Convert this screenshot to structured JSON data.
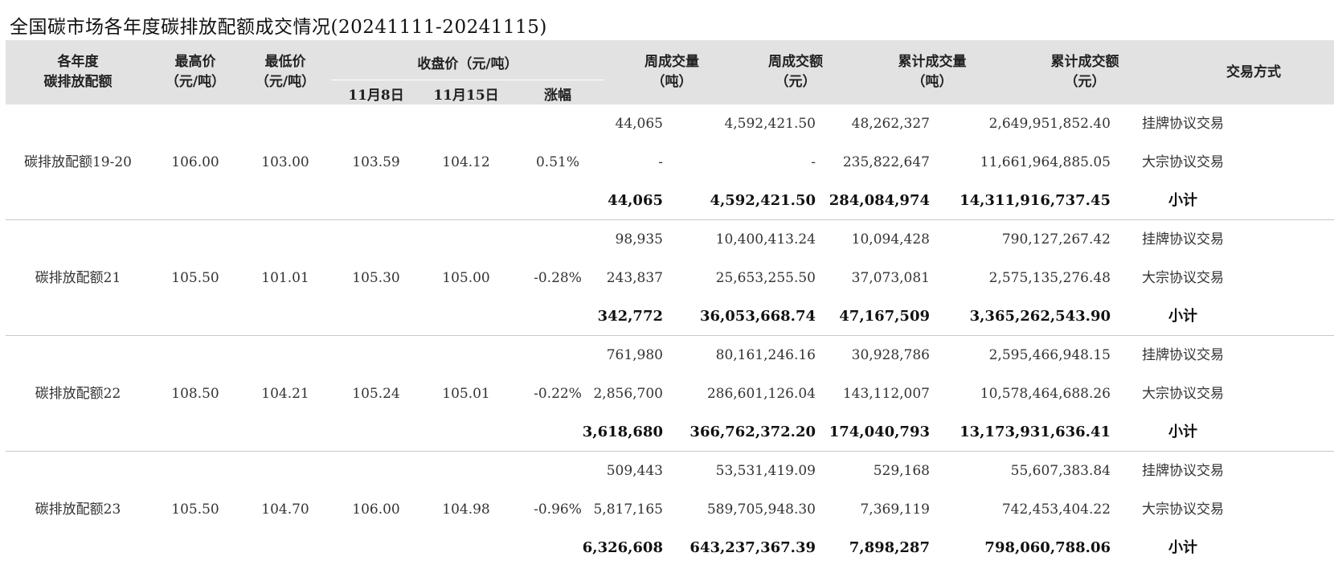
{
  "title": "全国碳市场各年度碳排放配额成交情况(20241111-20241115)",
  "header": {
    "quota_line1": "各年度",
    "quota_line2": "碳排放配额",
    "high_line1": "最高价",
    "high_line2": "（元/吨）",
    "low_line1": "最低价",
    "low_line2": "（元/吨）",
    "close_group": "收盘价（元/吨）",
    "close_d1": "11月8日",
    "close_d2": "11月15日",
    "change": "涨幅",
    "week_vol_line1": "周成交量",
    "week_vol_line2": "（吨）",
    "week_amt_line1": "周成交额",
    "week_amt_line2": "（元）",
    "cum_vol_line1": "累计成交量",
    "cum_vol_line2": "（吨）",
    "cum_amt_line1": "累计成交额",
    "cum_amt_line2": "（元）",
    "method": "交易方式"
  },
  "groups": [
    {
      "name": "碳排放配额19-20",
      "high": "106.00",
      "low": "103.00",
      "close_d1": "103.59",
      "close_d2": "104.12",
      "change": "0.51%",
      "rows": [
        {
          "week_vol": "44,065",
          "week_amt": "4,592,421.50",
          "cum_vol": "48,262,327",
          "cum_amt": "2,649,951,852.40",
          "method": "挂牌协议交易"
        },
        {
          "week_vol": "-",
          "week_amt": "-",
          "cum_vol": "235,822,647",
          "cum_amt": "11,661,964,885.05",
          "method": "大宗协议交易"
        },
        {
          "week_vol": "44,065",
          "week_amt": "4,592,421.50",
          "cum_vol": "284,084,974",
          "cum_amt": "14,311,916,737.45",
          "method": "小计"
        }
      ]
    },
    {
      "name": "碳排放配额21",
      "high": "105.50",
      "low": "101.01",
      "close_d1": "105.30",
      "close_d2": "105.00",
      "change": "-0.28%",
      "rows": [
        {
          "week_vol": "98,935",
          "week_amt": "10,400,413.24",
          "cum_vol": "10,094,428",
          "cum_amt": "790,127,267.42",
          "method": "挂牌协议交易"
        },
        {
          "week_vol": "243,837",
          "week_amt": "25,653,255.50",
          "cum_vol": "37,073,081",
          "cum_amt": "2,575,135,276.48",
          "method": "大宗协议交易"
        },
        {
          "week_vol": "342,772",
          "week_amt": "36,053,668.74",
          "cum_vol": "47,167,509",
          "cum_amt": "3,365,262,543.90",
          "method": "小计"
        }
      ]
    },
    {
      "name": "碳排放配额22",
      "high": "108.50",
      "low": "104.21",
      "close_d1": "105.24",
      "close_d2": "105.01",
      "change": "-0.22%",
      "rows": [
        {
          "week_vol": "761,980",
          "week_amt": "80,161,246.16",
          "cum_vol": "30,928,786",
          "cum_amt": "2,595,466,948.15",
          "method": "挂牌协议交易"
        },
        {
          "week_vol": "2,856,700",
          "week_amt": "286,601,126.04",
          "cum_vol": "143,112,007",
          "cum_amt": "10,578,464,688.26",
          "method": "大宗协议交易"
        },
        {
          "week_vol": "3,618,680",
          "week_amt": "366,762,372.20",
          "cum_vol": "174,040,793",
          "cum_amt": "13,173,931,636.41",
          "method": "小计"
        }
      ]
    },
    {
      "name": "碳排放配额23",
      "high": "105.50",
      "low": "104.70",
      "close_d1": "106.00",
      "close_d2": "104.98",
      "change": "-0.96%",
      "rows": [
        {
          "week_vol": "509,443",
          "week_amt": "53,531,419.09",
          "cum_vol": "529,168",
          "cum_amt": "55,607,383.84",
          "method": "挂牌协议交易"
        },
        {
          "week_vol": "5,817,165",
          "week_amt": "589,705,948.30",
          "cum_vol": "7,369,119",
          "cum_amt": "742,453,404.22",
          "method": "大宗协议交易"
        },
        {
          "week_vol": "6,326,608",
          "week_amt": "643,237,367.39",
          "cum_vol": "7,898,287",
          "cum_amt": "798,060,788.06",
          "method": "小计"
        }
      ]
    }
  ]
}
